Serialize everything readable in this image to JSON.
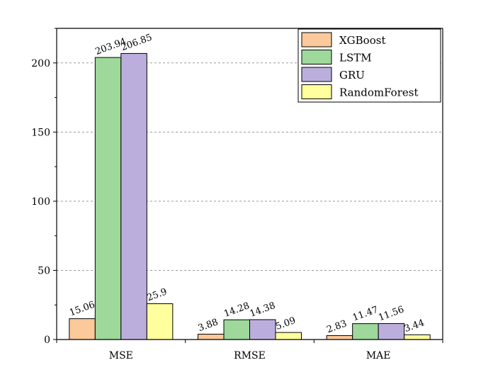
{
  "chart_data": {
    "type": "bar",
    "title": "",
    "xlabel": "",
    "ylabel": "",
    "categories": [
      "MSE",
      "RMSE",
      "MAE"
    ],
    "ylim": [
      0,
      225
    ],
    "yticks": [
      0,
      50,
      100,
      150,
      200
    ],
    "grid": "horizontal dashed",
    "legend_position": "top-right",
    "series": [
      {
        "name": "XGBoost",
        "color": "#fbc99a",
        "values": [
          15.06,
          3.88,
          2.83
        ],
        "labels": [
          "15.06",
          "3.88",
          "2.83"
        ]
      },
      {
        "name": "LSTM",
        "color": "#9ed89b",
        "values": [
          203.94,
          14.28,
          11.47
        ],
        "labels": [
          "203.94",
          "14.28",
          "11.47"
        ]
      },
      {
        "name": "GRU",
        "color": "#bcaedc",
        "values": [
          206.85,
          14.38,
          11.56
        ],
        "labels": [
          "206.85",
          "14.38",
          "11.56"
        ]
      },
      {
        "name": "RandomForest",
        "color": "#ffff9e",
        "values": [
          25.9,
          5.09,
          3.44
        ],
        "labels": [
          "25.9",
          "5.09",
          "3.44"
        ]
      }
    ]
  }
}
